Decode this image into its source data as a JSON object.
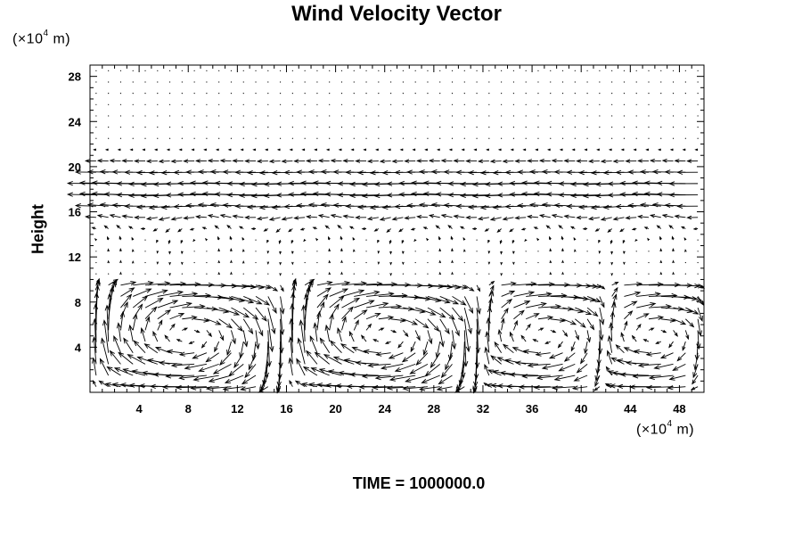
{
  "chart_data": {
    "type": "vector-field",
    "title": "Wind Velocity Vector",
    "ylabel": "Height",
    "x_unit": {
      "prefix": "(×10",
      "exp": "4",
      "suffix": " m)"
    },
    "y_unit": {
      "prefix": "(×10",
      "exp": "4",
      "suffix": " m)"
    },
    "xlim": [
      0,
      50
    ],
    "ylim": [
      0,
      29
    ],
    "x_ticks": [
      4,
      8,
      12,
      16,
      20,
      24,
      28,
      32,
      36,
      40,
      44,
      48
    ],
    "y_ticks": [
      4,
      8,
      12,
      16,
      20,
      24,
      28
    ],
    "grid": {
      "nx": 50,
      "ny": 29,
      "x0": 0.5,
      "y0": 0.5,
      "dx": 1.0,
      "dy": 1.0
    },
    "cells": [
      {
        "x0": 0,
        "x1": 16,
        "sense": 1
      },
      {
        "x0": 16,
        "x1": 32,
        "sense": 1
      },
      {
        "x0": 32,
        "x1": 42,
        "sense": 1
      },
      {
        "x0": 42,
        "x1": 50,
        "sense": 1
      }
    ],
    "lower_layer_top": 10,
    "upper_jet_height": 18,
    "grid_lines": false
  },
  "footer": {
    "time_label": "TIME = ",
    "time_value": "1000000.0"
  }
}
